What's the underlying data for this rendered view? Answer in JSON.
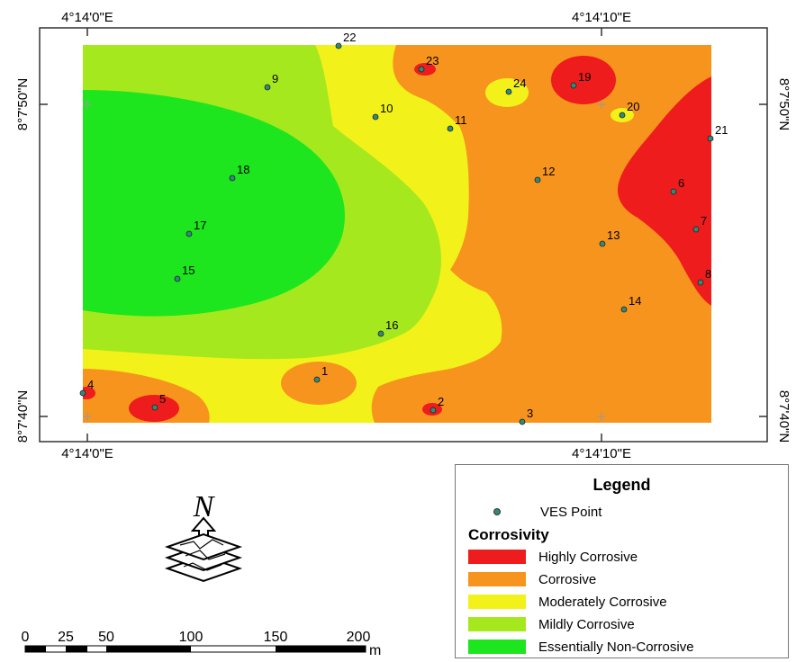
{
  "map": {
    "coord_labels": {
      "top_left": "4°14'0\"E",
      "top_right": "4°14'10\"E",
      "bottom_left": "4°14'0\"E",
      "bottom_right": "4°14'10\"E",
      "left_top": "8°7'50\"N",
      "left_bottom": "8°7'40\"N",
      "right_top": "8°7'50\"N",
      "right_bottom": "8°7'40\"N"
    },
    "ves_points": [
      {
        "label": "1"
      },
      {
        "label": "2"
      },
      {
        "label": "3"
      },
      {
        "label": "4"
      },
      {
        "label": "5"
      },
      {
        "label": "6"
      },
      {
        "label": "7"
      },
      {
        "label": "8"
      },
      {
        "label": "9"
      },
      {
        "label": "10"
      },
      {
        "label": "11"
      },
      {
        "label": "12"
      },
      {
        "label": "13"
      },
      {
        "label": "14"
      },
      {
        "label": "15"
      },
      {
        "label": "16"
      },
      {
        "label": "17"
      },
      {
        "label": "18"
      },
      {
        "label": "19"
      },
      {
        "label": "20"
      },
      {
        "label": "21"
      },
      {
        "label": "22"
      },
      {
        "label": "23"
      },
      {
        "label": "24"
      }
    ],
    "colors": {
      "highly_corrosive": "#ee1c1c",
      "corrosive": "#f7941d",
      "moderately_corrosive": "#f2f21a",
      "mildly_corrosive": "#a6e81e",
      "essentially_non_corrosive": "#1ee61e",
      "ves_point": "#2e8b7a"
    }
  },
  "north_arrow": {
    "letter": "N",
    "icon": "north-arrow-icon"
  },
  "scale_bar": {
    "labels": [
      "0",
      "25",
      "50",
      "100",
      "150",
      "200"
    ],
    "unit": "m"
  },
  "legend": {
    "title": "Legend",
    "ves_label": "VES Point",
    "corrosivity_title": "Corrosivity",
    "classes": [
      {
        "label": "Highly Corrosive",
        "color": "#ee1c1c"
      },
      {
        "label": "Corrosive",
        "color": "#f7941d"
      },
      {
        "label": "Moderately Corrosive",
        "color": "#f2f21a"
      },
      {
        "label": "Mildly Corrosive",
        "color": "#a6e81e"
      },
      {
        "label": "Essentially Non-Corrosive",
        "color": "#1ee61e"
      }
    ]
  }
}
